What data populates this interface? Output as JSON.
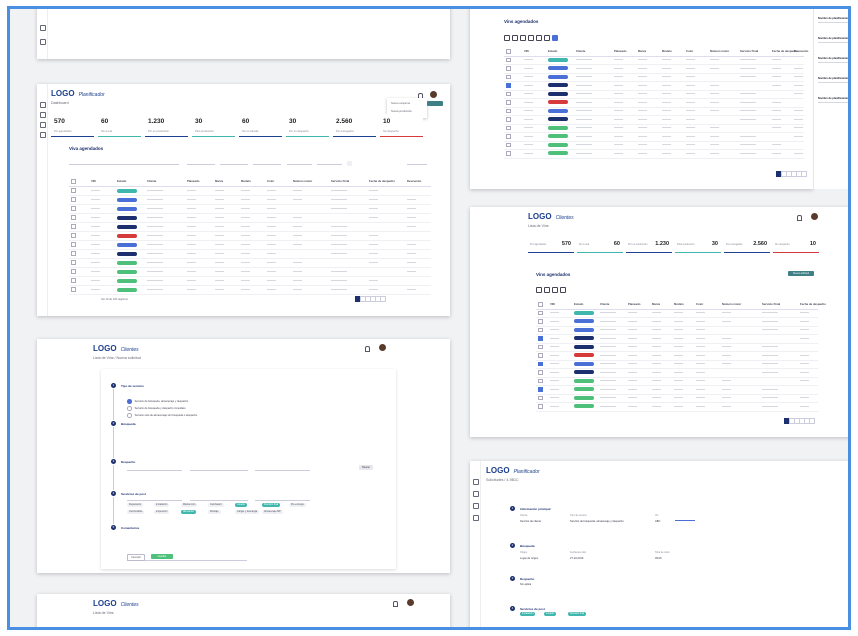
{
  "colors": {
    "frame": "#4a90e2",
    "brand": "#1c3f8f",
    "teal": "#3fb6ae",
    "blue": "#4a6fd6",
    "navy": "#1c2f6f",
    "red": "#d63a3a",
    "green": "#4ec07a"
  },
  "main": {
    "logo": "LOGO",
    "logo_sub": "Planificador",
    "breadcrumb": "Dashboard",
    "kpis": [
      {
        "value": "570",
        "label": "Por agendados"
      },
      {
        "value": "60",
        "label": "Sin a ruta"
      },
      {
        "value": "1.230",
        "label": "Por en producción"
      },
      {
        "value": "30",
        "label": "Para producción"
      },
      {
        "value": "60",
        "label": "Sin en tránsito"
      },
      {
        "value": "30",
        "label": "Por en despacho"
      },
      {
        "value": "2.560",
        "label": "Por entregados"
      },
      {
        "value": "10",
        "label": "Sin despacho"
      }
    ],
    "section_title": "Viva agendados",
    "filter_button": "Filtrar",
    "order_label": "Ordenar",
    "columns": [
      "VIN",
      "Estado",
      "Cliente",
      "Planeado",
      "Marca",
      "Modelo",
      "Color",
      "Número motor",
      "Servicio Final",
      "Fecha de despacho",
      "Descuento"
    ],
    "states": [
      "teal",
      "blue",
      "blue",
      "navy",
      "navy",
      "red",
      "blue",
      "navy",
      "green",
      "green",
      "green",
      "green"
    ],
    "pager_label": "Ver 10 de 100 registros",
    "dropdown": [
      "Nuevo esquema",
      "Nueva producción"
    ]
  },
  "form": {
    "logo": "LOGO",
    "logo_sub": "Clientes",
    "breadcrumb": "Lista de Vins / Nueva solicitud",
    "sections": [
      {
        "title": "Tipo de servicio"
      },
      {
        "title": "Búsqueda"
      },
      {
        "title": "Despacho"
      },
      {
        "title": "Servicios de post"
      },
      {
        "title": "Comentarios"
      }
    ],
    "options": [
      "Servicio de búsqueda, almacenaje y despacho",
      "Servicio de búsqueda y despacho inmediato",
      "Servicio solo de almacenaje sin búsqueda o despacho"
    ],
    "chips": [
      "Reparación",
      "Instalación",
      "Mantención",
      "Cambiador",
      "Lavado",
      "Revisión final",
      "Pre-entrega",
      "Combustible",
      "Inspección",
      "Alineación",
      "Montaje",
      "Cargar y descargar",
      "Almacenaje MP"
    ],
    "cancel": "Cancelar",
    "submit": "Guardar",
    "search_button": "Buscar"
  },
  "top_right": {
    "title": "Vins agendados",
    "notifications": [
      "Nombre de planificación",
      "Nombre de planificación",
      "Nombre de planificación",
      "Nombre de planificación",
      "Nombre de planificación"
    ]
  },
  "right_mid": {
    "logo": "LOGO",
    "logo_sub": "Clientes",
    "breadcrumb": "Lista de Vins",
    "kpis": [
      {
        "value": "570",
        "label": "Por agendados"
      },
      {
        "value": "60",
        "label": "Sin a ruta"
      },
      {
        "value": "1.230",
        "label": "Por en producción"
      },
      {
        "value": "30",
        "label": "Para producción"
      },
      {
        "value": "2.560",
        "label": "Por entregados"
      },
      {
        "value": "10",
        "label": "Sin despacho"
      }
    ],
    "section_title": "Vins agendados",
    "new_button": "Nueva solicitud"
  },
  "bottom_right": {
    "logo": "LOGO",
    "logo_sub": "Planificador",
    "breadcrumb": "Solicitudes / 4-9B1C",
    "sections": [
      "Información principal",
      "Búsqueda",
      "Despacho",
      "Servicios de post"
    ],
    "fields": [
      "Cliente",
      "Tipo de servicio",
      "Vin",
      "Origen",
      "Fecha de retiro",
      "Hora de retiro"
    ],
    "values": [
      "Servicio de cliente",
      "Servicio de búsqueda, almacenaje y despacho",
      "ABC",
      "Lugar de origen",
      "27-10-2019",
      "09:00"
    ],
    "chips": [
      "Instalación",
      "Lavado",
      "Revisión final"
    ],
    "no_despacho": "Sin aplica"
  },
  "bottom_left": {
    "logo": "LOGO",
    "logo_sub": "Clientes",
    "breadcrumb": "Lista de Vins"
  }
}
